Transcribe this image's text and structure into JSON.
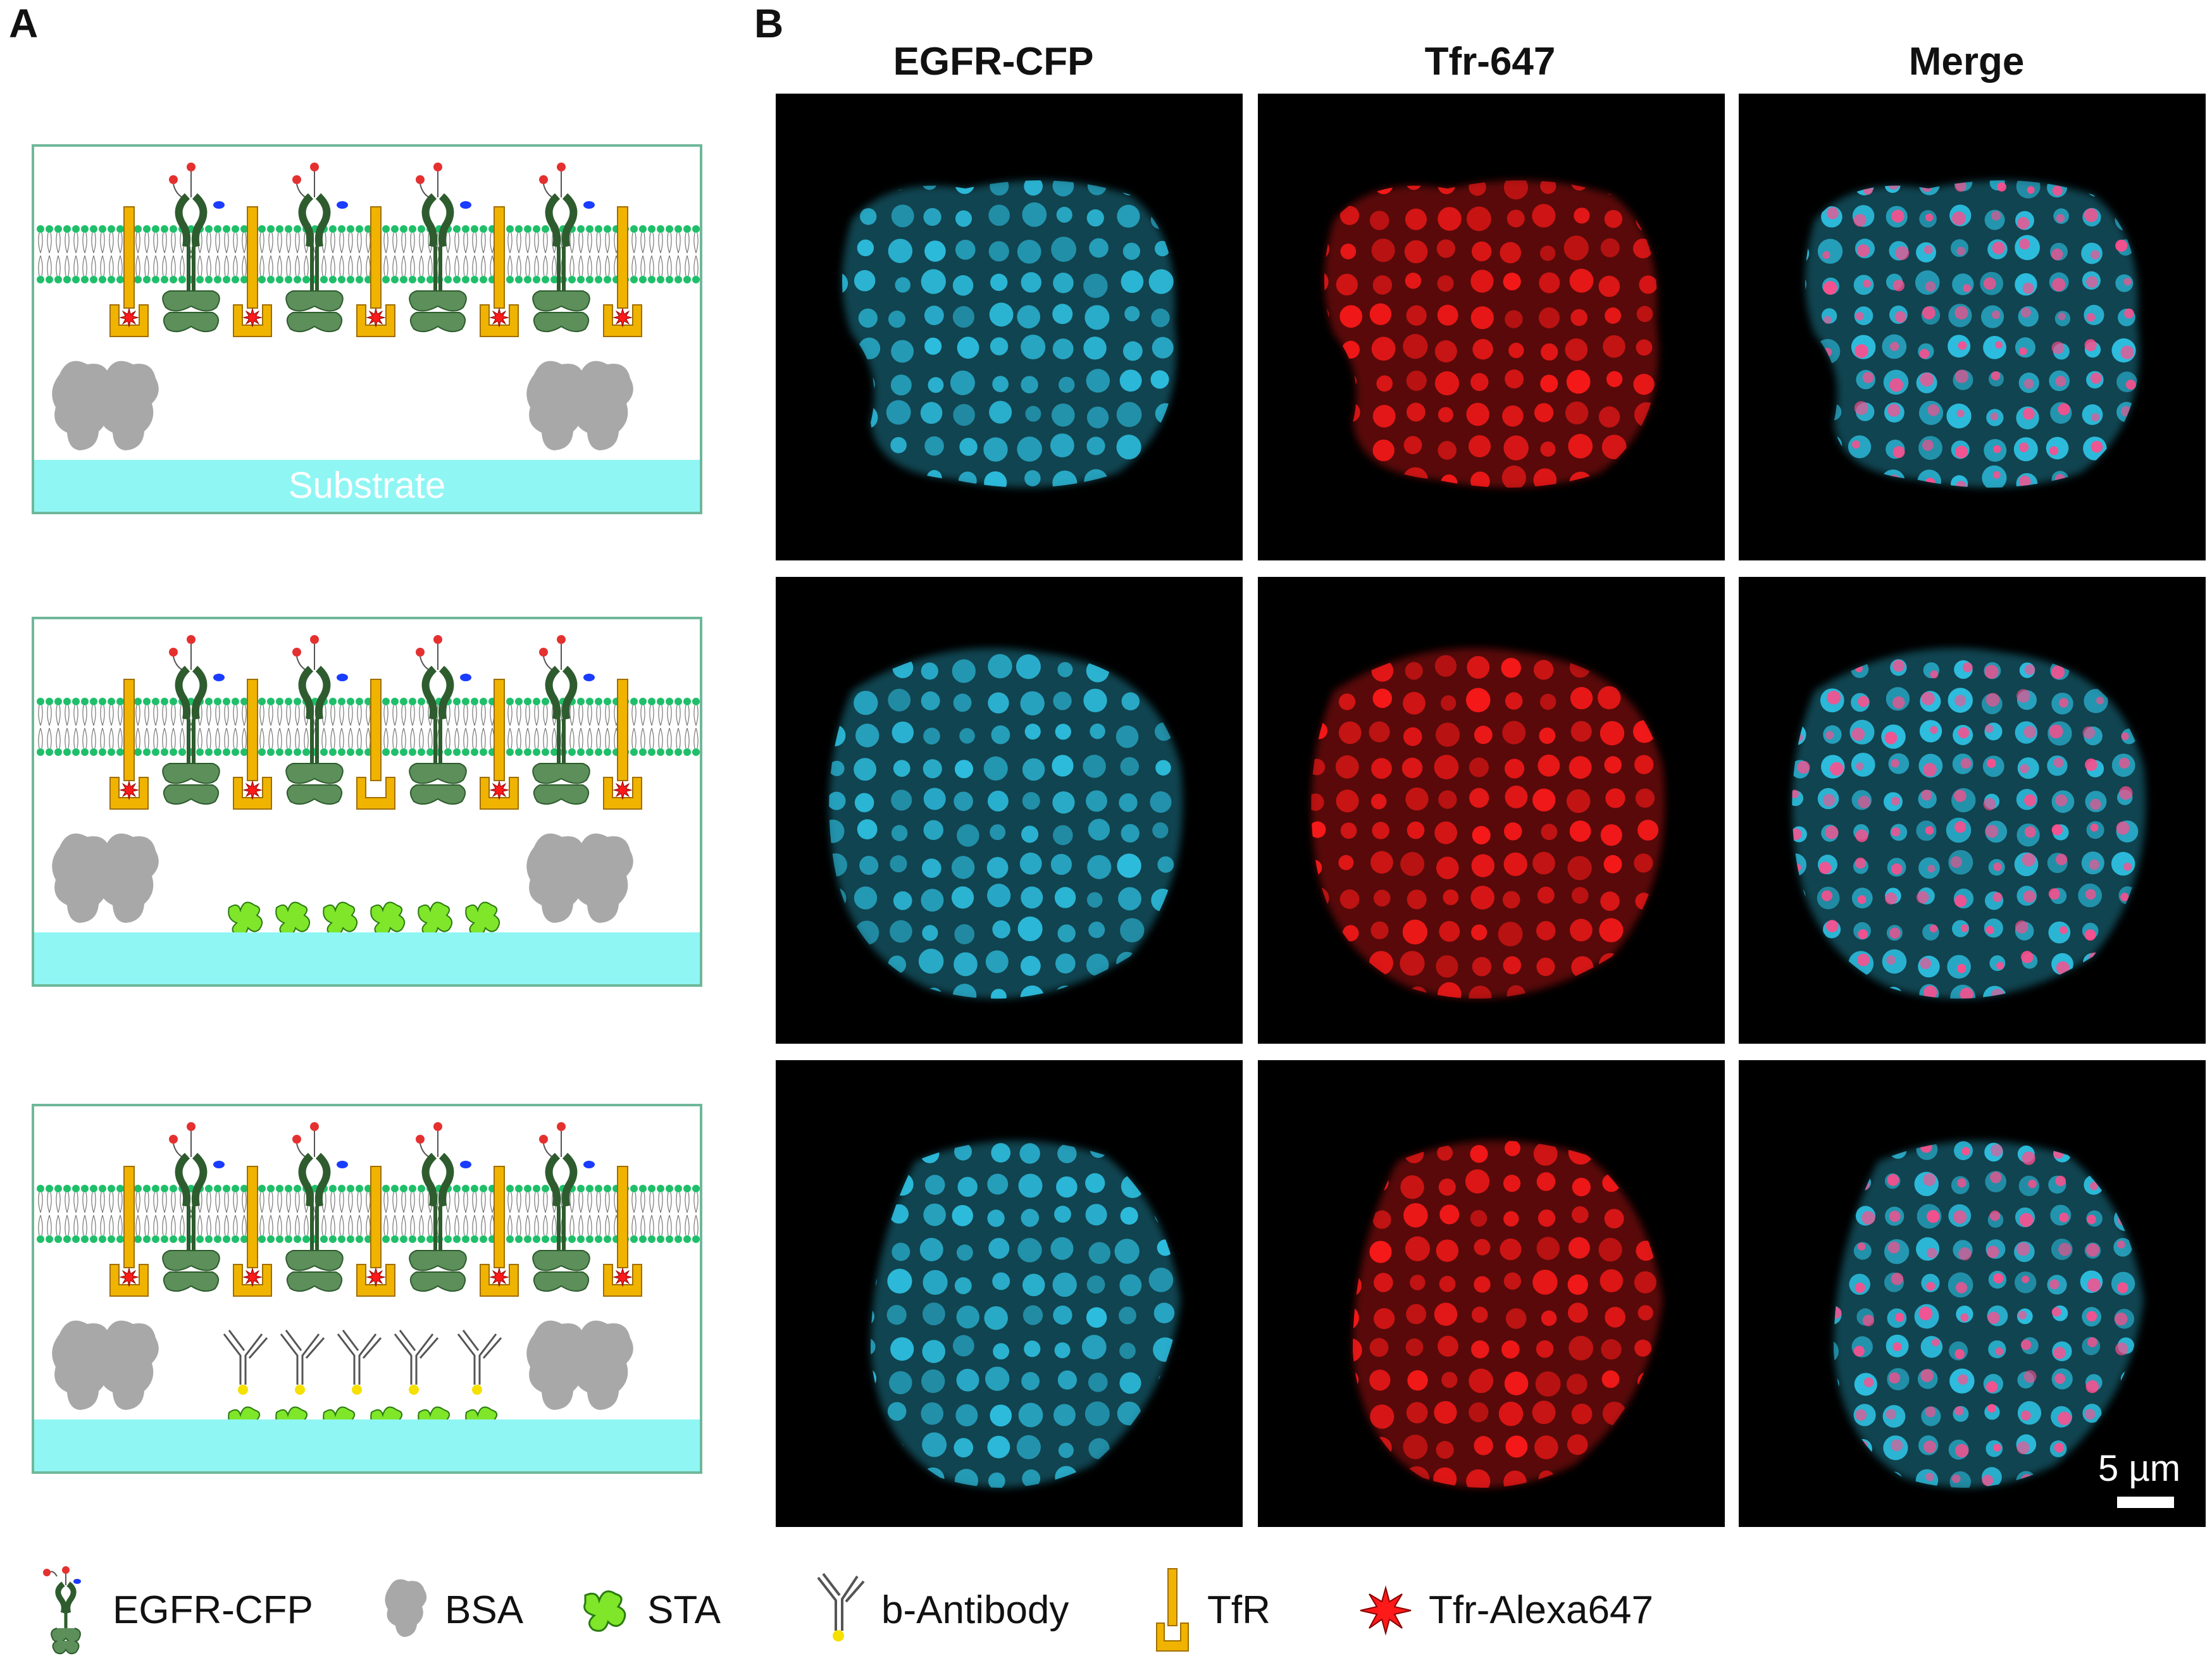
{
  "panels": {
    "a_label": "A",
    "b_label": "B"
  },
  "schematic": {
    "substrate_label": "Substrate"
  },
  "columns": [
    "EGFR-CFP",
    "Tfr-647",
    "Merge"
  ],
  "scale_bar": {
    "label": "5 µm"
  },
  "legend": [
    {
      "icon": "egfr-cfp-icon",
      "label": "EGFR-CFP"
    },
    {
      "icon": "bsa-icon",
      "label": "BSA"
    },
    {
      "icon": "sta-icon",
      "label": "STA"
    },
    {
      "icon": "b-antibody-icon",
      "label": "b-Antibody"
    },
    {
      "icon": "tfr-icon",
      "label": "TfR"
    },
    {
      "icon": "tfr-alexa647-icon",
      "label": "Tfr-Alexa647"
    }
  ],
  "colors": {
    "cyan": "#2fc4e6",
    "red": "#ff1a1a",
    "membrane_green": "#1fbf6a",
    "protein_green": "#5c8f5a",
    "tfr_yellow": "#f0b400",
    "sta_green": "#7fe62a",
    "bsa_gray": "#a8a8a8",
    "substrate": "#8ff6f4"
  }
}
